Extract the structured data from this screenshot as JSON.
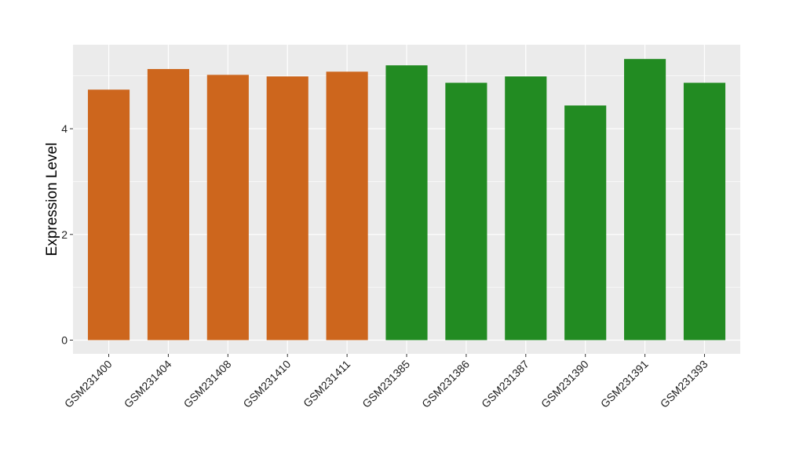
{
  "chart_data": {
    "type": "bar",
    "title": "",
    "xlabel": "",
    "ylabel": "Expression Level",
    "categories": [
      "GSM231400",
      "GSM231404",
      "GSM231408",
      "GSM231410",
      "GSM231411",
      "GSM231385",
      "GSM231386",
      "GSM231387",
      "GSM231390",
      "GSM231391",
      "GSM231393"
    ],
    "values": [
      4.74,
      5.13,
      5.02,
      4.99,
      5.08,
      5.2,
      4.87,
      4.99,
      4.44,
      5.32,
      4.87
    ],
    "bar_colors": [
      "#CD661D",
      "#CD661D",
      "#CD661D",
      "#CD661D",
      "#CD661D",
      "#228B22",
      "#228B22",
      "#228B22",
      "#228B22",
      "#228B22",
      "#228B22"
    ],
    "ylim": [
      -0.26,
      5.59
    ],
    "yticks": [
      0,
      2,
      4
    ],
    "ytick_labels": [
      "0",
      "2",
      "4"
    ],
    "grid": true,
    "legend": "none",
    "panel_background": "#EBEBEB"
  }
}
